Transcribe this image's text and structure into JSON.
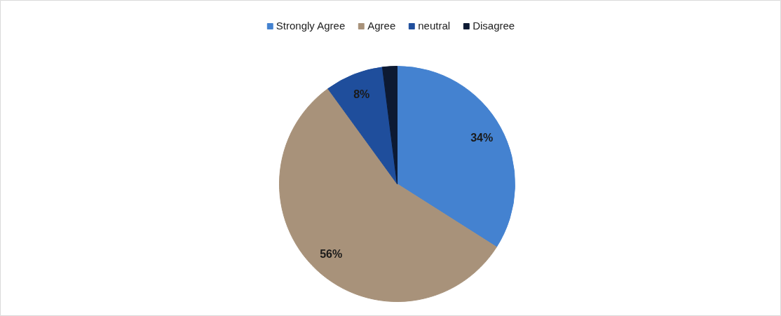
{
  "chart_data": {
    "type": "pie",
    "categories": [
      "Strongly Agree",
      "Agree",
      "neutral",
      "Disagree"
    ],
    "values": [
      34,
      56,
      8,
      2
    ],
    "colors": [
      "#4482d0",
      "#a8927a",
      "#1f4e9c",
      "#0d1a33"
    ],
    "value_labels": [
      "34%",
      "56%",
      "8%",
      null
    ],
    "legend": "top"
  }
}
